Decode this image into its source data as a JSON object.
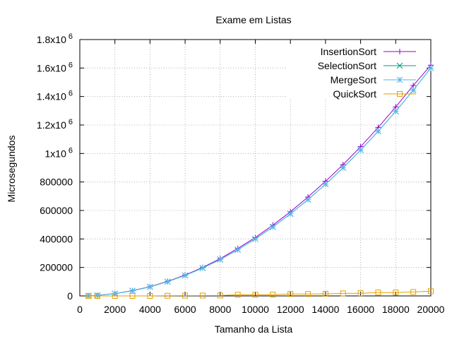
{
  "chart_data": {
    "type": "line",
    "title": "Exame em Listas",
    "xlabel": "Tamanho da Lista",
    "ylabel": "Microsegundos",
    "xlim": [
      0,
      20000
    ],
    "ylim": [
      0,
      1800000
    ],
    "grid": true,
    "legend_position": "top-right",
    "x_ticks": [
      {
        "value": 0,
        "label": "0"
      },
      {
        "value": 2000,
        "label": "2000"
      },
      {
        "value": 4000,
        "label": "4000"
      },
      {
        "value": 6000,
        "label": "6000"
      },
      {
        "value": 8000,
        "label": "8000"
      },
      {
        "value": 10000,
        "label": "10000"
      },
      {
        "value": 12000,
        "label": "12000"
      },
      {
        "value": 14000,
        "label": "14000"
      },
      {
        "value": 16000,
        "label": "16000"
      },
      {
        "value": 18000,
        "label": "18000"
      },
      {
        "value": 20000,
        "label": "20000"
      }
    ],
    "y_ticks": [
      {
        "value": 0,
        "label": "0"
      },
      {
        "value": 200000,
        "label": "200000"
      },
      {
        "value": 400000,
        "label": "400000"
      },
      {
        "value": 600000,
        "label": "600000"
      },
      {
        "value": 800000,
        "label": "800000"
      },
      {
        "value": 1000000,
        "label": "1x10",
        "sup": "6"
      },
      {
        "value": 1200000,
        "label": "1.2x10",
        "sup": "6"
      },
      {
        "value": 1400000,
        "label": "1.4x10",
        "sup": "6"
      },
      {
        "value": 1600000,
        "label": "1.6x10",
        "sup": "6"
      },
      {
        "value": 1800000,
        "label": "1.8x10",
        "sup": "6"
      }
    ],
    "x": [
      500,
      1000,
      2000,
      3000,
      4000,
      5000,
      6000,
      7000,
      8000,
      9000,
      10000,
      11000,
      12000,
      13000,
      14000,
      15000,
      16000,
      17000,
      18000,
      19000,
      20000
    ],
    "series": [
      {
        "name": "InsertionSort",
        "color": "#9400d3",
        "marker": "plus",
        "values": [
          1000,
          4000,
          16000,
          37000,
          65000,
          102000,
          147000,
          200000,
          262000,
          333000,
          410000,
          497000,
          591000,
          694000,
          805000,
          922000,
          1048000,
          1183000,
          1327000,
          1477000,
          1620000
        ]
      },
      {
        "name": "SelectionSort",
        "color": "#009e73",
        "marker": "cross",
        "values": [
          1000,
          4000,
          16000,
          36000,
          64000,
          100000,
          144000,
          196000,
          256000,
          324000,
          400000,
          484000,
          576000,
          676000,
          784000,
          900000,
          1024000,
          1156000,
          1296000,
          1444000,
          1600000
        ]
      },
      {
        "name": "MergeSort",
        "color": "#56b4e9",
        "marker": "star",
        "values": [
          1000,
          4000,
          16000,
          36000,
          64000,
          100000,
          144000,
          196000,
          256000,
          324000,
          400000,
          484000,
          576000,
          676000,
          784000,
          900000,
          1024000,
          1156000,
          1296000,
          1444000,
          1600000
        ]
      },
      {
        "name": "QuickSort",
        "color": "#e69f00",
        "marker": "square",
        "values": [
          0,
          0,
          0,
          0,
          0,
          1000,
          2000,
          2500,
          3000,
          8000,
          8000,
          9000,
          14000,
          14000,
          15000,
          18000,
          19000,
          24000,
          24000,
          28000,
          33000
        ]
      }
    ]
  }
}
